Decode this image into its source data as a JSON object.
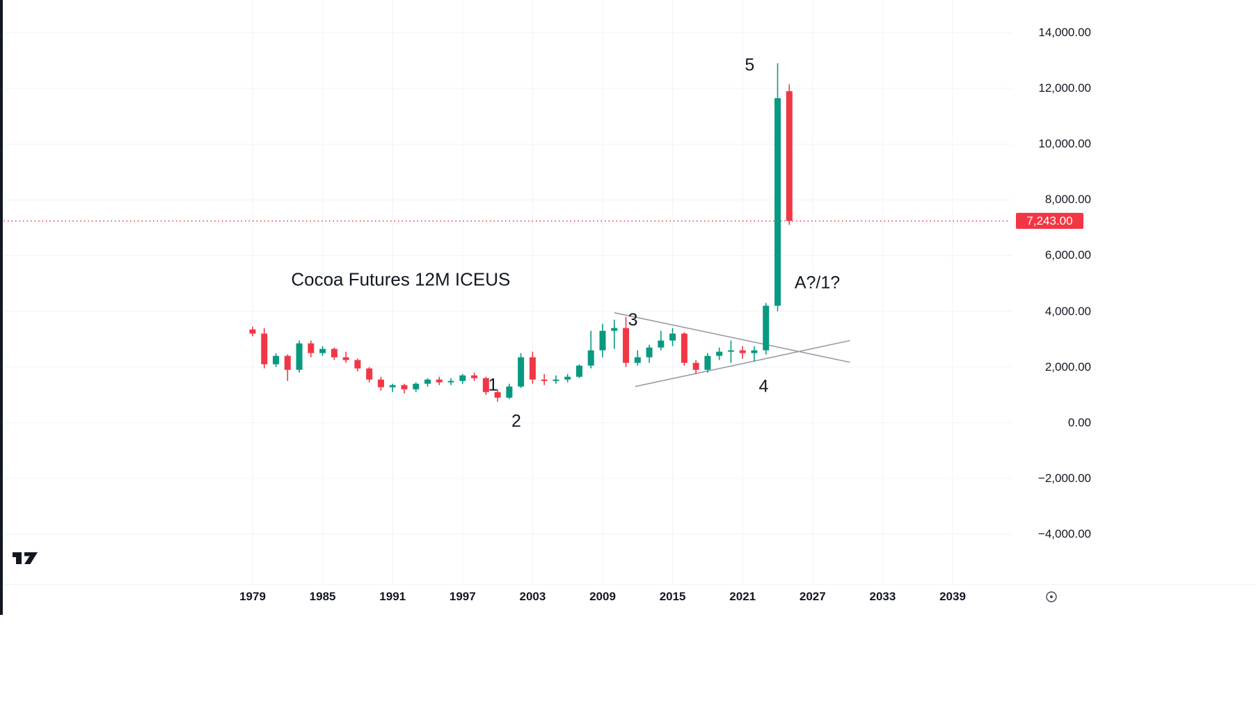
{
  "window": {
    "app": "tradingview-chart"
  },
  "chart": {
    "instrument_label": "Cocoa Futures 12M ICEUS"
  },
  "price_axis": {
    "ticks": [
      {
        "label": "14,000.00",
        "value": 14000
      },
      {
        "label": "12,000.00",
        "value": 12000
      },
      {
        "label": "10,000.00",
        "value": 10000
      },
      {
        "label": "8,000.00",
        "value": 8000
      },
      {
        "label": "6,000.00",
        "value": 6000
      },
      {
        "label": "4,000.00",
        "value": 4000
      },
      {
        "label": "2,000.00",
        "value": 2000
      },
      {
        "label": "0.00",
        "value": 0
      },
      {
        "label": "−2,000.00",
        "value": -2000
      },
      {
        "label": "−4,000.00",
        "value": -4000
      }
    ],
    "current_price": {
      "label": "7,243.00",
      "value": 7243
    }
  },
  "time_axis": {
    "ticks": [
      {
        "label": "1979",
        "year": 1979
      },
      {
        "label": "1985",
        "year": 1985
      },
      {
        "label": "1991",
        "year": 1991
      },
      {
        "label": "1997",
        "year": 1997
      },
      {
        "label": "2003",
        "year": 2003
      },
      {
        "label": "2009",
        "year": 2009
      },
      {
        "label": "2015",
        "year": 2015
      },
      {
        "label": "2021",
        "year": 2021
      },
      {
        "label": "2027",
        "year": 2027
      },
      {
        "label": "2033",
        "year": 2033
      },
      {
        "label": "2039",
        "year": 2039
      }
    ]
  },
  "chart_data": {
    "type": "candlestick",
    "title": "Cocoa Futures 12M ICEUS",
    "timeframe": "12M",
    "exchange": "ICEUS",
    "x_range_years": [
      1957,
      2044
    ],
    "ylim": [
      -4800,
      14500
    ],
    "grid": true,
    "candle_columns": [
      "year",
      "open",
      "high",
      "low",
      "close"
    ],
    "candles": [
      [
        1979,
        3350,
        3450,
        3100,
        3200
      ],
      [
        1980,
        3200,
        3400,
        1950,
        2100
      ],
      [
        1981,
        2100,
        2500,
        2000,
        2400
      ],
      [
        1982,
        2400,
        2450,
        1500,
        1900
      ],
      [
        1983,
        1900,
        2950,
        1800,
        2850
      ],
      [
        1984,
        2850,
        2950,
        2350,
        2500
      ],
      [
        1985,
        2500,
        2750,
        2400,
        2650
      ],
      [
        1986,
        2650,
        2700,
        2250,
        2350
      ],
      [
        1987,
        2350,
        2550,
        2150,
        2250
      ],
      [
        1988,
        2250,
        2300,
        1850,
        1950
      ],
      [
        1989,
        1950,
        2000,
        1450,
        1550
      ],
      [
        1990,
        1550,
        1650,
        1150,
        1275
      ],
      [
        1991,
        1275,
        1400,
        1100,
        1350
      ],
      [
        1992,
        1350,
        1400,
        1050,
        1200
      ],
      [
        1993,
        1200,
        1450,
        1100,
        1400
      ],
      [
        1994,
        1400,
        1600,
        1300,
        1550
      ],
      [
        1995,
        1550,
        1650,
        1350,
        1450
      ],
      [
        1996,
        1450,
        1600,
        1350,
        1500
      ],
      [
        1997,
        1500,
        1750,
        1400,
        1700
      ],
      [
        1998,
        1700,
        1800,
        1500,
        1600
      ],
      [
        1999,
        1600,
        1650,
        1000,
        1100
      ],
      [
        2000,
        1100,
        1200,
        750,
        900
      ],
      [
        2001,
        900,
        1400,
        850,
        1300
      ],
      [
        2002,
        1300,
        2500,
        1250,
        2350
      ],
      [
        2003,
        2350,
        2550,
        1400,
        1550
      ],
      [
        2004,
        1550,
        1750,
        1350,
        1500
      ],
      [
        2005,
        1500,
        1700,
        1400,
        1550
      ],
      [
        2006,
        1550,
        1750,
        1450,
        1650
      ],
      [
        2007,
        1650,
        2100,
        1600,
        2050
      ],
      [
        2008,
        2050,
        3300,
        1950,
        2600
      ],
      [
        2009,
        2600,
        3550,
        2350,
        3300
      ],
      [
        2010,
        3300,
        3700,
        2650,
        3400
      ],
      [
        2011,
        3400,
        3800,
        2000,
        2150
      ],
      [
        2012,
        2150,
        2600,
        2050,
        2350
      ],
      [
        2013,
        2350,
        2800,
        2150,
        2700
      ],
      [
        2014,
        2700,
        3300,
        2600,
        2950
      ],
      [
        2015,
        2950,
        3400,
        2750,
        3200
      ],
      [
        2016,
        3200,
        3250,
        2050,
        2150
      ],
      [
        2017,
        2150,
        2250,
        1750,
        1900
      ],
      [
        2018,
        1900,
        2500,
        1800,
        2400
      ],
      [
        2019,
        2400,
        2700,
        2250,
        2550
      ],
      [
        2020,
        2550,
        2950,
        2150,
        2600
      ],
      [
        2021,
        2600,
        2750,
        2300,
        2500
      ],
      [
        2022,
        2500,
        2750,
        2200,
        2600
      ],
      [
        2023,
        2600,
        4300,
        2450,
        4200
      ],
      [
        2024,
        4200,
        12900,
        4000,
        11650
      ],
      [
        2025,
        11900,
        12150,
        7100,
        7243
      ]
    ],
    "annotations": [
      {
        "text": "Cocoa Futures 12M ICEUS",
        "year": 1982.3,
        "price": 5100,
        "size": 26,
        "anchor": "start"
      },
      {
        "text": "1",
        "year": 1999.6,
        "price": 1320,
        "size": 25,
        "anchor": "middle"
      },
      {
        "text": "2",
        "year": 2001.6,
        "price": 20,
        "size": 25,
        "anchor": "middle"
      },
      {
        "text": "3",
        "year": 2011.6,
        "price": 3650,
        "size": 25,
        "anchor": "middle"
      },
      {
        "text": "4",
        "year": 2022.8,
        "price": 1270,
        "size": 25,
        "anchor": "middle"
      },
      {
        "text": "5",
        "year": 2021.6,
        "price": 12800,
        "size": 25,
        "anchor": "middle"
      },
      {
        "text": "A?/1?",
        "year": 2027.4,
        "price": 4990,
        "size": 25,
        "anchor": "middle"
      }
    ],
    "trendlines": [
      {
        "x1": 2010.0,
        "y1": 3950,
        "x2": 2030.2,
        "y2": 2170
      },
      {
        "x1": 2011.8,
        "y1": 1300,
        "x2": 2030.2,
        "y2": 2950
      }
    ],
    "price_line": {
      "value": 7243,
      "label": "7,243.00",
      "style": "dotted"
    }
  },
  "colors": {
    "up": "#089981",
    "down": "#F23645",
    "price_line": "#F23645",
    "trendline": "#9a9ca1",
    "axis_text": "#131722",
    "annotation_text": "#131722",
    "grid": "#f0f3fa",
    "tag_bg": "#F23645",
    "tag_text": "#ffffff"
  },
  "branding": {
    "logo": "tradingview-logo"
  },
  "icons": {
    "bottom_right": "timezone-target-icon"
  }
}
